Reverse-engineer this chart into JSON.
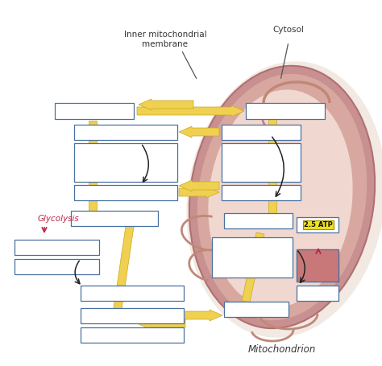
{
  "bg_color": "#ffffff",
  "mito_shadow_color": "#e8d8d0",
  "mito_outer_color": "#c89090",
  "mito_outer_edge": "#b07070",
  "mito_inner_color": "#dbb0a8",
  "mito_matrix_color": "#f0d8d0",
  "cristae_color": "#c08878",
  "box_edge_color": "#4a70a0",
  "box_face_color": "#ffffff",
  "arrow_yellow_face": "#f0d050",
  "arrow_yellow_edge": "#c8a820",
  "arrow_dark": "#222222",
  "glycolysis_color": "#bb2244",
  "atp_bg": "#f0e020",
  "atp_edge": "#a09000",
  "label_line_color": "#555555",
  "title_bottom": "Mitochondrion",
  "label_inner": "Inner mitochondrial\nmembrane",
  "label_cytosol": "Cytosol",
  "label_glycolysis": "Glycolysis",
  "label_atp": "2.5 ATP"
}
